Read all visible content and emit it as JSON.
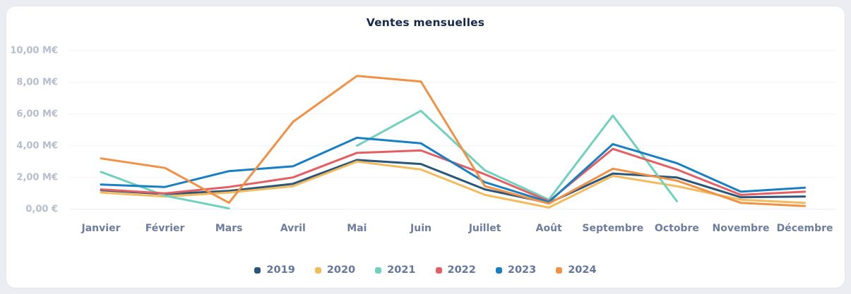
{
  "chart_data": {
    "type": "line",
    "title": "Ventes mensuelles",
    "unit": "M€",
    "ylim": [
      0,
      10
    ],
    "grid": true,
    "legend_position": "bottom",
    "categories": [
      "Janvier",
      "Février",
      "Mars",
      "Avril",
      "Mai",
      "Juin",
      "Juillet",
      "Août",
      "Septembre",
      "Octobre",
      "Novembre",
      "Décembre"
    ],
    "y_ticks": [
      {
        "value": 10,
        "label": "10,00 M€"
      },
      {
        "value": 8,
        "label": "8,00 M€"
      },
      {
        "value": 6,
        "label": "6,00 M€"
      },
      {
        "value": 4,
        "label": "4,00 M€"
      },
      {
        "value": 2,
        "label": "2,00 M€"
      },
      {
        "value": 0,
        "label": "0,00 €"
      }
    ],
    "series": [
      {
        "name": "2019",
        "color": "#2a5779",
        "values": [
          1.2,
          0.95,
          1.15,
          1.6,
          3.1,
          2.85,
          1.25,
          0.4,
          2.25,
          2.0,
          0.75,
          0.8
        ]
      },
      {
        "name": "2020",
        "color": "#f2bc5e",
        "values": [
          1.05,
          0.8,
          1.05,
          1.45,
          3.0,
          2.5,
          0.9,
          0.1,
          2.1,
          1.45,
          0.6,
          0.4
        ]
      },
      {
        "name": "2021",
        "color": "#70d1bd",
        "values": [
          2.35,
          0.85,
          0.05,
          null,
          4.0,
          6.2,
          2.45,
          0.6,
          5.9,
          0.5,
          null,
          null
        ]
      },
      {
        "name": "2022",
        "color": "#e45f63",
        "values": [
          1.25,
          1.0,
          1.4,
          2.0,
          3.55,
          3.7,
          2.2,
          0.5,
          3.8,
          2.5,
          0.9,
          1.1
        ]
      },
      {
        "name": "2023",
        "color": "#187fc2",
        "values": [
          1.55,
          1.4,
          2.4,
          2.7,
          4.5,
          4.15,
          1.7,
          0.45,
          4.1,
          2.9,
          1.1,
          1.35
        ]
      },
      {
        "name": "2024",
        "color": "#f09146",
        "values": [
          3.2,
          2.6,
          0.4,
          5.5,
          8.4,
          8.05,
          1.45,
          0.35,
          2.55,
          1.8,
          0.4,
          0.2
        ]
      }
    ]
  }
}
